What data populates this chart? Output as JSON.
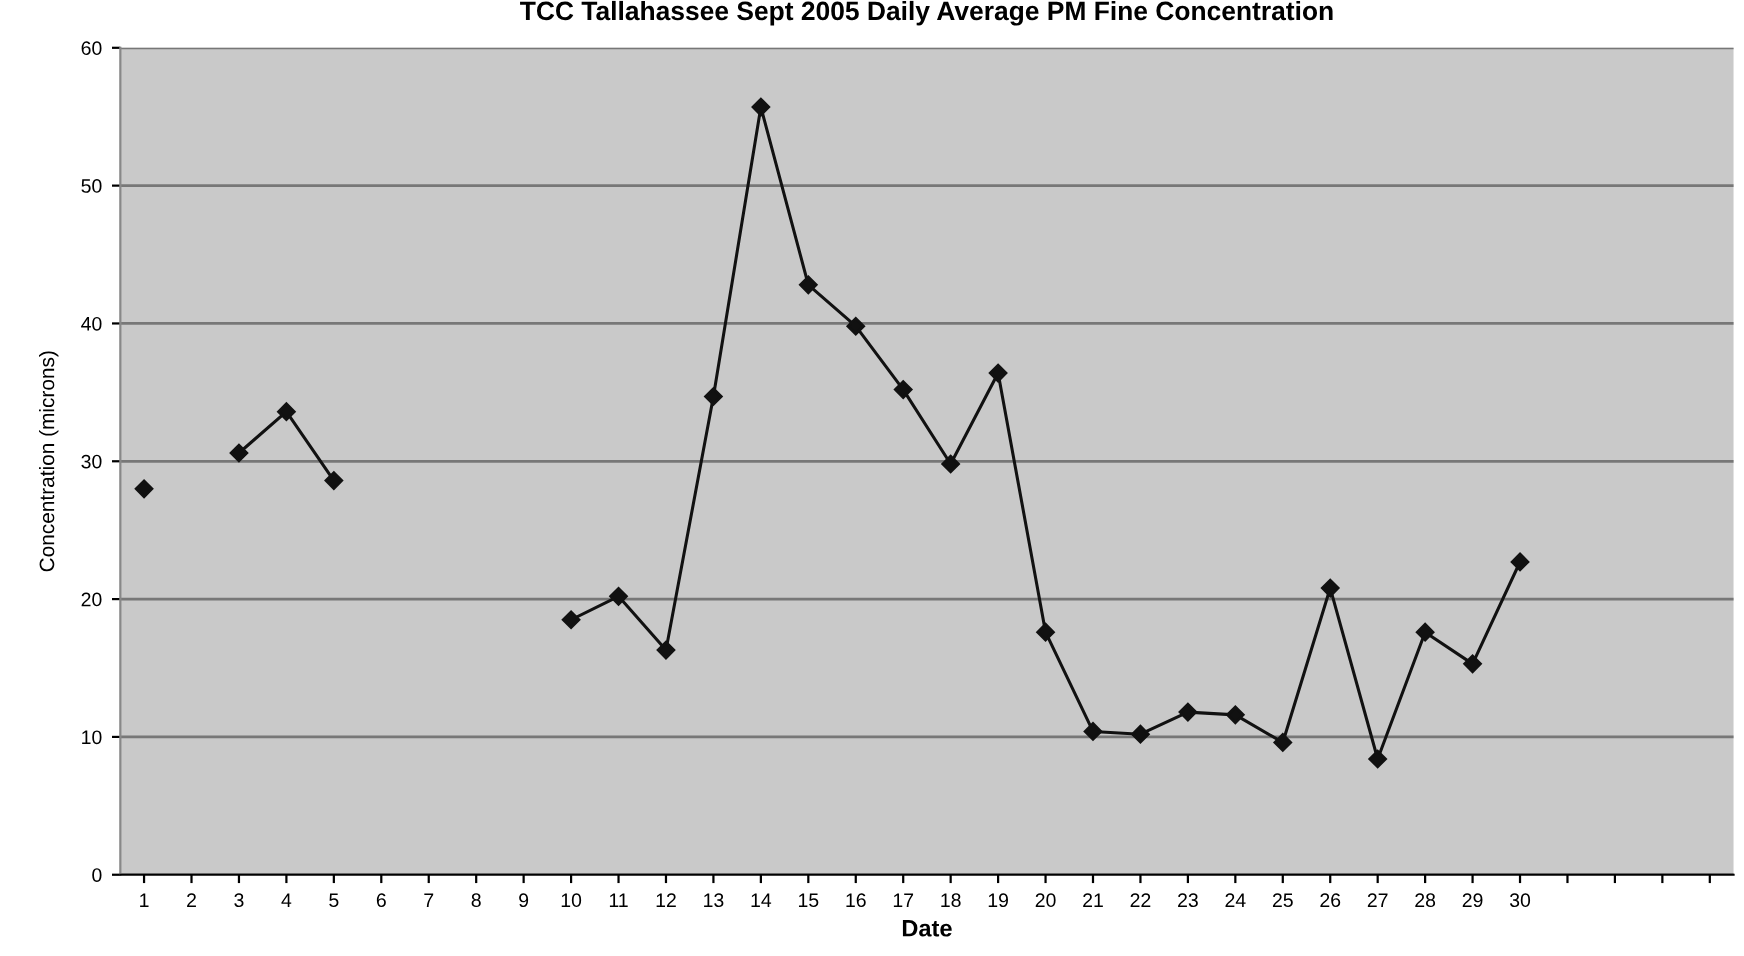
{
  "chart_data": {
    "type": "line",
    "title": "TCC Tallahassee Sept 2005 Daily Average PM Fine Concentration",
    "xlabel": "Date",
    "ylabel": "Concentration (microns)",
    "categories": [
      "1",
      "2",
      "3",
      "4",
      "5",
      "6",
      "7",
      "8",
      "9",
      "10",
      "11",
      "12",
      "13",
      "14",
      "15",
      "16",
      "17",
      "18",
      "19",
      "20",
      "21",
      "22",
      "23",
      "24",
      "25",
      "26",
      "27",
      "28",
      "29",
      "30",
      null,
      null,
      null,
      null
    ],
    "series": [
      {
        "color": "#111111",
        "values": [
          28.0,
          null,
          30.6,
          33.6,
          28.6,
          null,
          null,
          null,
          null,
          18.5,
          20.2,
          16.3,
          34.7,
          55.7,
          42.8,
          39.8,
          35.2,
          29.8,
          36.4,
          17.6,
          10.4,
          10.2,
          11.8,
          11.6,
          9.6,
          20.8,
          8.4,
          17.6,
          15.3,
          22.7,
          null,
          null,
          null,
          null
        ]
      }
    ],
    "ylim": [
      0,
      60
    ],
    "yticks": [
      0,
      10,
      20,
      30,
      40,
      50,
      60
    ],
    "grid": "y",
    "marker": "diamond",
    "line_style": "solid"
  }
}
